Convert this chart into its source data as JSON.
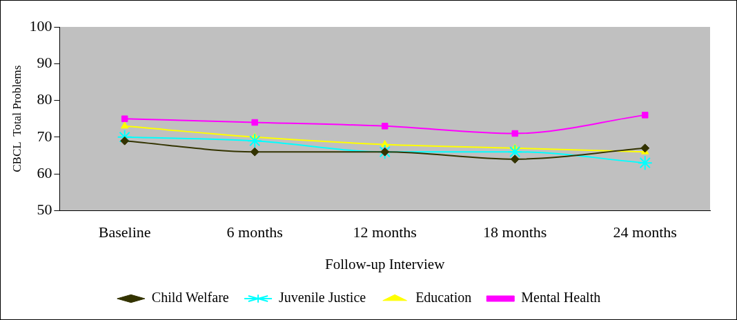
{
  "chart_data": {
    "type": "line",
    "xlabel": "Follow-up Interview",
    "ylabel": "CBCL  Total Problems",
    "categories": [
      "Baseline",
      "6 months",
      "12 months",
      "18 months",
      "24 months"
    ],
    "series": [
      {
        "name": "Child Welfare",
        "color": "#333300",
        "marker": "diamond",
        "values": [
          69,
          66,
          66,
          64,
          67
        ]
      },
      {
        "name": "Juvenile Justice",
        "color": "#00ffff",
        "marker": "cross",
        "values": [
          70,
          69,
          66,
          66,
          63
        ]
      },
      {
        "name": "Education",
        "color": "#ffff00",
        "marker": "triangle",
        "values": [
          73,
          70,
          68,
          67,
          66
        ]
      },
      {
        "name": "Mental Health",
        "color": "#ff00ff",
        "marker": "square",
        "values": [
          75,
          74,
          73,
          71,
          76
        ]
      }
    ],
    "ylim": [
      50,
      100
    ],
    "yticks": [
      50,
      60,
      70,
      80,
      90,
      100
    ],
    "grid": false,
    "legend": "bottom"
  }
}
